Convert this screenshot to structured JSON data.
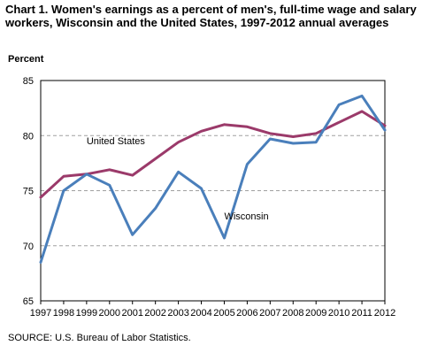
{
  "chart_data": {
    "type": "line",
    "title": "Chart 1. Women's earnings as a percent of men's, full-time wage and salary workers, Wisconsin  and the United States, 1997-2012 annual averages",
    "ylabel": "Percent",
    "xlabel": "",
    "source": "SOURCE:  U.S. Bureau of Labor Statistics.",
    "x": [
      "1997",
      "1998",
      "1999",
      "2000",
      "2001",
      "2002",
      "2003",
      "2004",
      "2005",
      "2006",
      "2007",
      "2008",
      "2009",
      "2010",
      "2011",
      "2012"
    ],
    "ylim": [
      65,
      85
    ],
    "yticks": [
      "65",
      "70",
      "75",
      "80",
      "85"
    ],
    "grid": "horizontal dashed",
    "series": [
      {
        "name": "United States",
        "color": "#9b3a6a",
        "values": [
          74.4,
          76.3,
          76.5,
          76.9,
          76.4,
          77.9,
          79.4,
          80.4,
          81.0,
          80.8,
          80.2,
          79.9,
          80.2,
          81.2,
          82.2,
          80.9
        ]
      },
      {
        "name": "Wisconsin",
        "color": "#4a7fbb",
        "values": [
          68.5,
          75.0,
          76.5,
          75.5,
          71.0,
          73.4,
          76.7,
          75.2,
          70.7,
          77.4,
          79.7,
          79.3,
          79.4,
          82.8,
          83.6,
          80.5
        ]
      }
    ]
  }
}
